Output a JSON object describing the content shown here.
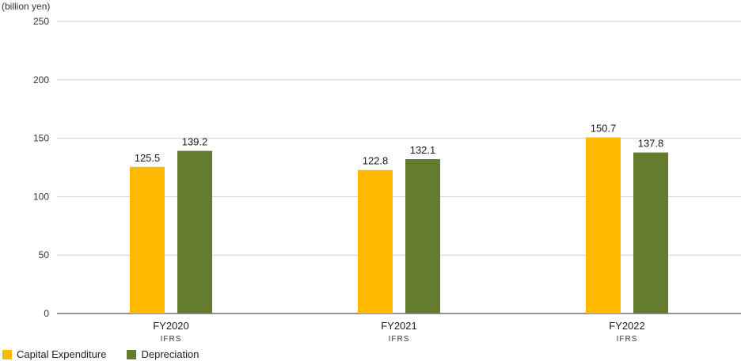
{
  "chart_data": {
    "type": "bar",
    "unit_label": "(billion yen)",
    "categories": [
      "FY2020",
      "FY2021",
      "FY2022"
    ],
    "category_sublabels": [
      "IFRS",
      "IFRS",
      "IFRS"
    ],
    "series": [
      {
        "name": "Capital Expenditure",
        "color": "#FFB900",
        "values": [
          125.5,
          122.8,
          150.7
        ]
      },
      {
        "name": "Depreciation",
        "color": "#657C2E",
        "values": [
          139.2,
          132.1,
          137.8
        ]
      }
    ],
    "yticks": [
      0,
      50,
      100,
      150,
      200,
      250
    ],
    "ylim": [
      0,
      250
    ],
    "grid": true,
    "legend_position": "bottom-left"
  }
}
